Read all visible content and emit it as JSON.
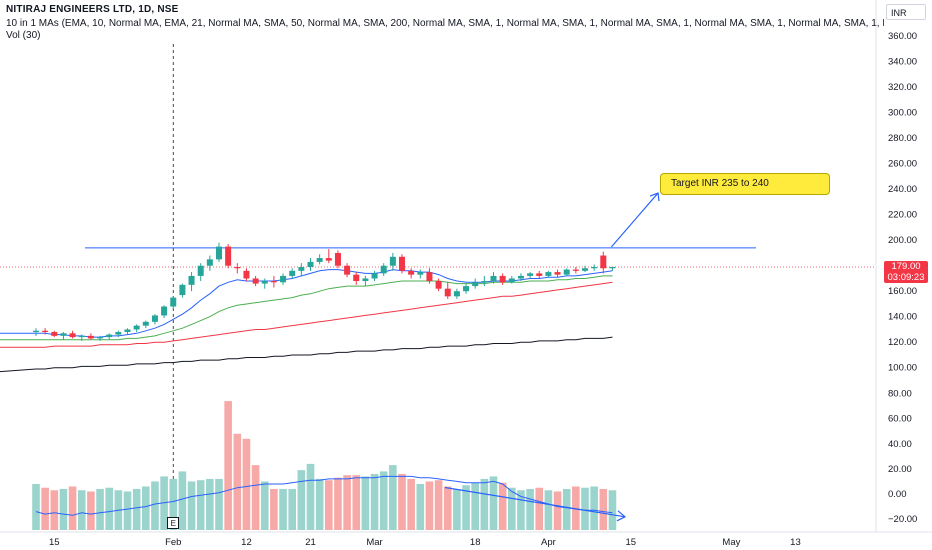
{
  "header": {
    "title": "NITIRAJ ENGINEERS LTD, 1D, NSE",
    "indicator": "10 in 1 MAs (EMA, 10, Normal MA, EMA, 21, Normal MA, SMA, 50, Normal MA, SMA, 200, Normal MA, SMA, 1, Normal MA, SMA, 1, Normal MA, SMA, 1, Normal MA, SMA, 1, Normal MA, SMA, 1, Norm",
    "volume": "Vol (30)"
  },
  "currency": "INR",
  "last_price": {
    "value": "179.00",
    "countdown": "03:09:23"
  },
  "annotation": "Target INR 235 to 240",
  "earnings_marker": "E",
  "colors": {
    "up": "#26a69a",
    "down": "#f23645",
    "vol_up": "#9bd3cd",
    "vol_down": "#f7a9a7",
    "ema10": "#2962ff",
    "ema21": "#4caf50",
    "sma50": "#f23645",
    "sma200": "#131722",
    "resistance": "#2962ff"
  },
  "chart_data": {
    "type": "candlestick",
    "price_axis": {
      "ticks": [
        "360.00",
        "340.00",
        "320.00",
        "300.00",
        "280.00",
        "260.00",
        "240.00",
        "220.00",
        "200.00",
        "180.00",
        "160.00",
        "140.00",
        "120.00",
        "100.00"
      ],
      "range": [
        90,
        370
      ]
    },
    "volume_axis": {
      "ticks": [
        "80.00",
        "60.00",
        "40.00",
        "20.00",
        "0.00",
        "−20.00"
      ],
      "range": [
        -25,
        85
      ]
    },
    "x_ticks": [
      {
        "label": "15",
        "i": 2
      },
      {
        "label": "Feb",
        "i": 15
      },
      {
        "label": "12",
        "i": 23
      },
      {
        "label": "21",
        "i": 30
      },
      {
        "label": "Mar",
        "i": 37
      },
      {
        "label": "18",
        "i": 48
      },
      {
        "label": "Apr",
        "i": 56
      },
      {
        "label": "15",
        "i": 65
      },
      {
        "label": "May",
        "i": 76
      },
      {
        "label": "13",
        "i": 83
      }
    ],
    "candles": [
      [
        128,
        131,
        125,
        129
      ],
      [
        129,
        131,
        126,
        128
      ],
      [
        128,
        129,
        124,
        125
      ],
      [
        125,
        128,
        122,
        127
      ],
      [
        127,
        129,
        123,
        124
      ],
      [
        124,
        126,
        121,
        125
      ],
      [
        125,
        127,
        122,
        123
      ],
      [
        123,
        125,
        121,
        124
      ],
      [
        124,
        127,
        122,
        126
      ],
      [
        126,
        129,
        124,
        128
      ],
      [
        128,
        131,
        126,
        130
      ],
      [
        130,
        134,
        128,
        133
      ],
      [
        133,
        137,
        131,
        136
      ],
      [
        136,
        142,
        134,
        141
      ],
      [
        141,
        149,
        139,
        148
      ],
      [
        148,
        156,
        146,
        155
      ],
      [
        157,
        166,
        155,
        165
      ],
      [
        165,
        175,
        160,
        172
      ],
      [
        172,
        182,
        168,
        180
      ],
      [
        180,
        188,
        176,
        185
      ],
      [
        185,
        198,
        183,
        195
      ],
      [
        195,
        197,
        178,
        180
      ],
      [
        179,
        182,
        174,
        178
      ],
      [
        176,
        178,
        168,
        170
      ],
      [
        170,
        172,
        164,
        166
      ],
      [
        166,
        170,
        162,
        168
      ],
      [
        168,
        172,
        163,
        167
      ],
      [
        167,
        174,
        165,
        172
      ],
      [
        172,
        178,
        170,
        176
      ],
      [
        176,
        182,
        172,
        179
      ],
      [
        179,
        186,
        176,
        183
      ],
      [
        183,
        189,
        181,
        186
      ],
      [
        186,
        193,
        182,
        184
      ],
      [
        190,
        192,
        178,
        180
      ],
      [
        180,
        182,
        171,
        173
      ],
      [
        173,
        175,
        165,
        168
      ],
      [
        168,
        172,
        164,
        170
      ],
      [
        170,
        176,
        168,
        174
      ],
      [
        174,
        182,
        172,
        180
      ],
      [
        180,
        190,
        176,
        187
      ],
      [
        187,
        189,
        174,
        176
      ],
      [
        176,
        178,
        170,
        173
      ],
      [
        173,
        177,
        170,
        175
      ],
      [
        175,
        178,
        166,
        168
      ],
      [
        168,
        170,
        160,
        162
      ],
      [
        162,
        167,
        154,
        156
      ],
      [
        156,
        162,
        154,
        160
      ],
      [
        160,
        166,
        158,
        164
      ],
      [
        164,
        170,
        162,
        167
      ],
      [
        167,
        172,
        164,
        168
      ],
      [
        168,
        175,
        166,
        172
      ],
      [
        172,
        174,
        165,
        167
      ],
      [
        167,
        172,
        166,
        170
      ],
      [
        170,
        174,
        168,
        172
      ],
      [
        172,
        175,
        170,
        174
      ],
      [
        174,
        176,
        170,
        172
      ],
      [
        172,
        176,
        171,
        175
      ],
      [
        175,
        177,
        171,
        173
      ],
      [
        173,
        178,
        172,
        177
      ],
      [
        177,
        179,
        174,
        176
      ],
      [
        176,
        180,
        175,
        178
      ],
      [
        178,
        181,
        176,
        179
      ],
      [
        188,
        191,
        174,
        178
      ],
      [
        178,
        179,
        176,
        179
      ]
    ],
    "volume": [
      8,
      5,
      3,
      4,
      6,
      3,
      2,
      4,
      5,
      3,
      2,
      4,
      6,
      10,
      14,
      12,
      18,
      10,
      11,
      12,
      12,
      74,
      48,
      44,
      23,
      10,
      4,
      4,
      4,
      19,
      24,
      12,
      11,
      13,
      15,
      15,
      14,
      16,
      18,
      23,
      16,
      12,
      8,
      10,
      11,
      6,
      4,
      7,
      9,
      12,
      14,
      9,
      5,
      3,
      4,
      5,
      3,
      2,
      4,
      6,
      5,
      6,
      4,
      3
    ],
    "volume_ma": [
      -14,
      -16,
      -15,
      -16,
      -17,
      -15,
      -16,
      -15,
      -14,
      -13,
      -12,
      -11,
      -10,
      -8,
      -7,
      -6,
      -4,
      -2,
      -1,
      0,
      1,
      3,
      5,
      6,
      7,
      8,
      8,
      8,
      9,
      10,
      11,
      11,
      12,
      12,
      12,
      13,
      13,
      13,
      14,
      14,
      14,
      14,
      13,
      13,
      12,
      11,
      10,
      9,
      9,
      9,
      10,
      8,
      2,
      -2,
      -4,
      -6,
      -8,
      -10,
      -11,
      -12,
      -13,
      -13,
      -14,
      -15
    ],
    "series": [
      {
        "name": "EMA 10",
        "values": [
          127,
          127,
          126,
          126,
          125,
          125,
          124,
          124,
          125,
          125,
          126,
          127,
          129,
          131,
          134,
          138,
          142,
          147,
          153,
          158,
          164,
          167,
          169,
          168,
          168,
          168,
          168,
          169,
          170,
          172,
          174,
          176,
          177,
          177,
          176,
          175,
          174,
          174,
          175,
          177,
          176,
          176,
          175,
          175,
          173,
          170,
          168,
          167,
          167,
          167,
          168,
          168,
          168,
          169,
          170,
          170,
          171,
          171,
          172,
          172,
          173,
          174,
          175,
          176
        ]
      },
      {
        "name": "EMA 21",
        "values": [
          122,
          122,
          122,
          122,
          122,
          122,
          122,
          122,
          122,
          122,
          123,
          123,
          124,
          125,
          127,
          129,
          131,
          134,
          137,
          140,
          144,
          147,
          149,
          150,
          151,
          152,
          153,
          154,
          155,
          157,
          158,
          160,
          162,
          163,
          164,
          164,
          164,
          165,
          166,
          167,
          168,
          168,
          168,
          168,
          168,
          167,
          166,
          166,
          166,
          166,
          167,
          167,
          167,
          167,
          168,
          168,
          168,
          169,
          169,
          170,
          170,
          171,
          172,
          172
        ]
      },
      {
        "name": "SMA 50",
        "values": [
          116,
          116,
          117,
          117,
          117,
          117,
          117,
          118,
          118,
          118,
          118,
          119,
          119,
          120,
          120,
          121,
          122,
          123,
          124,
          125,
          126,
          127,
          128,
          129,
          130,
          130,
          131,
          132,
          133,
          134,
          135,
          136,
          137,
          138,
          139,
          140,
          141,
          142,
          143,
          144,
          145,
          146,
          147,
          148,
          149,
          150,
          151,
          152,
          153,
          154,
          155,
          156,
          156,
          157,
          158,
          159,
          160,
          161,
          162,
          163,
          164,
          165,
          166,
          167
        ]
      },
      {
        "name": "SMA 200",
        "values": [
          99,
          99,
          100,
          100,
          100,
          101,
          101,
          101,
          102,
          102,
          102,
          103,
          103,
          103,
          104,
          104,
          105,
          105,
          106,
          106,
          106,
          107,
          107,
          108,
          108,
          108,
          109,
          109,
          110,
          110,
          110,
          111,
          111,
          112,
          112,
          113,
          113,
          113,
          114,
          114,
          115,
          115,
          115,
          116,
          116,
          117,
          117,
          117,
          118,
          118,
          119,
          119,
          119,
          120,
          120,
          121,
          121,
          121,
          122,
          122,
          123,
          123,
          123,
          124
        ]
      }
    ],
    "resistance": 194,
    "last_close": 179,
    "annotation_arrow": {
      "from_price": 194,
      "to_price": 237
    },
    "volume_trend_arrow": {
      "from": 2,
      "to": -11
    },
    "earnings_index": 15
  }
}
